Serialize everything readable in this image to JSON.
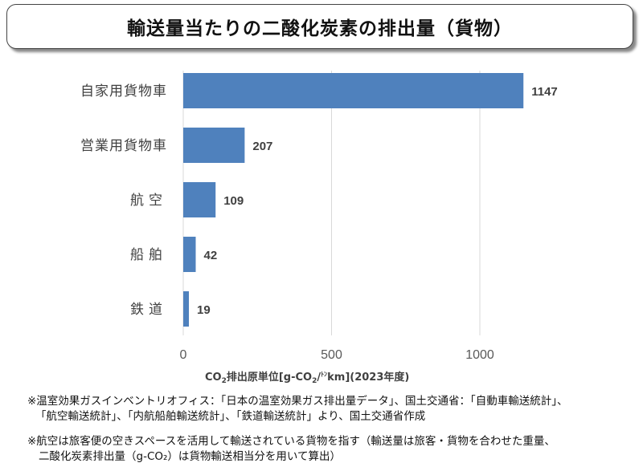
{
  "chart_data": {
    "type": "bar",
    "orientation": "horizontal",
    "title": "輸送量当たりの二酸化炭素の排出量（貨物）",
    "categories": [
      "自家用貨物車",
      "営業用貨物車",
      "航空",
      "船舶",
      "鉄道"
    ],
    "values": [
      1147,
      207,
      109,
      42,
      19
    ],
    "data_labels": [
      "1147",
      "207",
      "109",
      "42",
      "19"
    ],
    "xlabel": "CO2排出原単位[g-CO2/トンkm](2023年度)",
    "xlabel_parts": {
      "pre": "CO",
      "sub1": "2",
      "mid": "排出原単位[g-CO",
      "sub2": "2",
      "mid2": "/",
      "ton": "ﾄﾝ",
      "post": "km](2023年度)"
    },
    "xticks": [
      "0",
      "500",
      "1000"
    ],
    "xlim": [
      0,
      1150
    ],
    "grid": true,
    "bar_color": "#4f81bd"
  },
  "notes": {
    "line1": "※温室効果ガスインベントリオフィス：「日本の温室効果ガス排出量データ」、国土交通省：「自動車輸送統計」、",
    "line2": "「航空輸送統計」、「内航船舶輸送統計」、「鉄道輸送統計」より、国土交通省作成",
    "line3": "※航空は旅客便の空きスペースを活用して輸送されている貨物を指す（輸送量は旅客・貨物を合わせた重量、",
    "line4": "二酸化炭素排出量（g-CO₂）は貨物輸送相当分を用いて算出）"
  }
}
